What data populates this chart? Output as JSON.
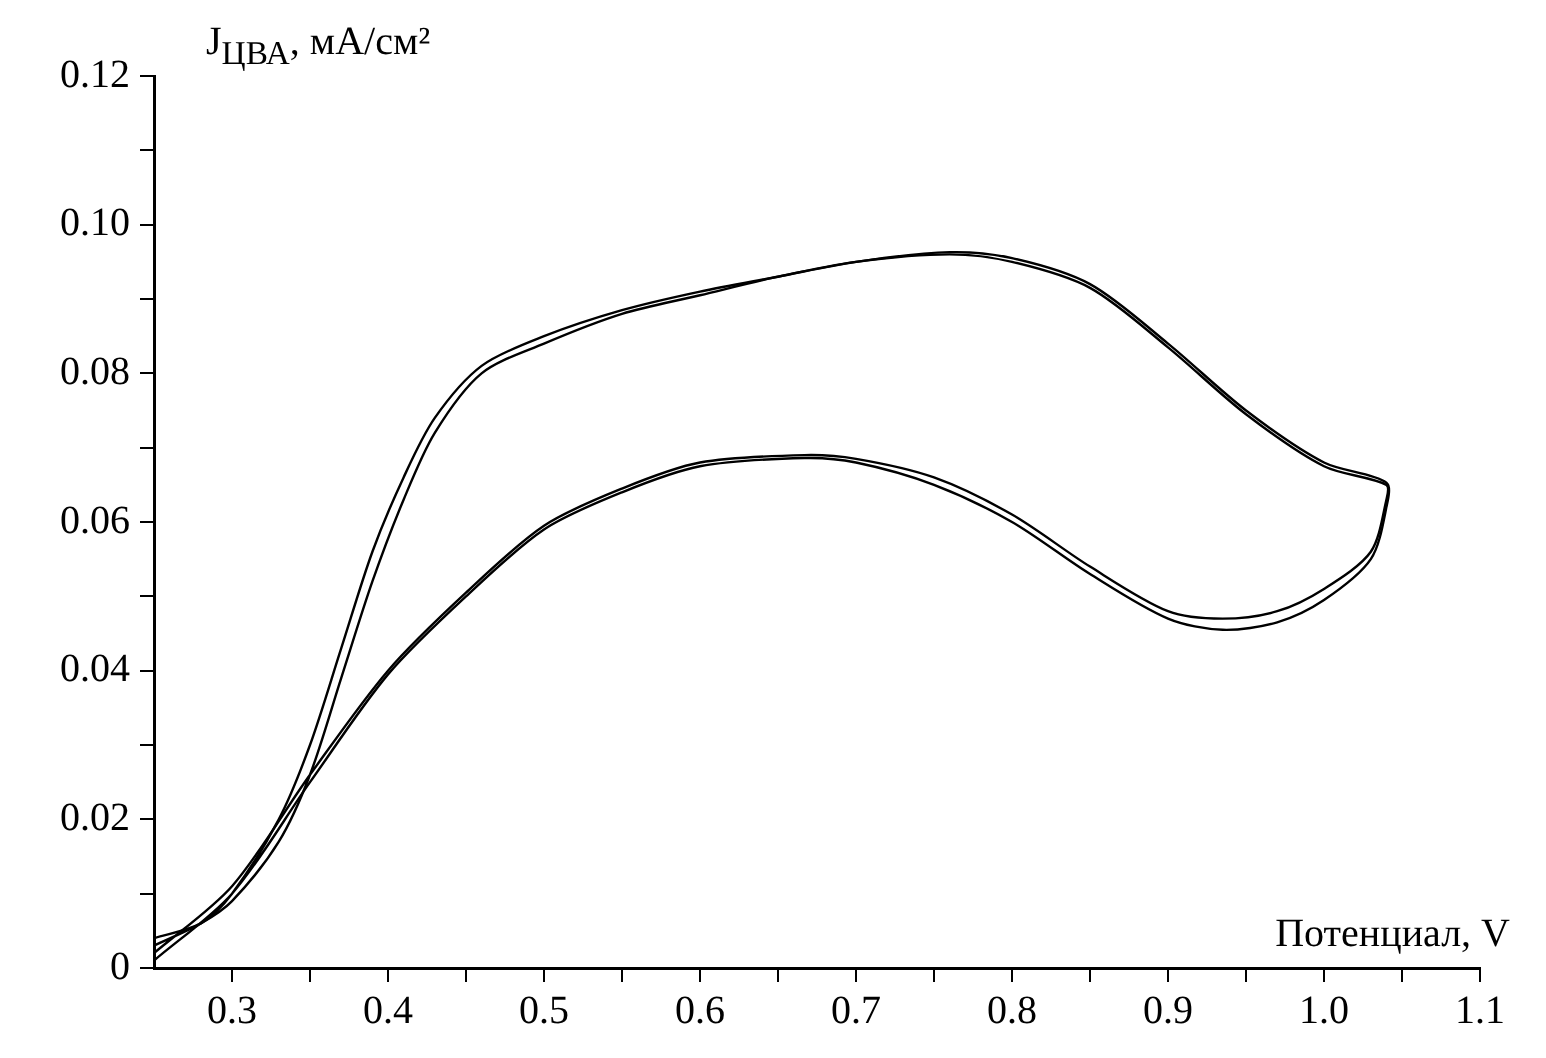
{
  "chart_data": {
    "type": "line",
    "ylabel": "J$_{ЦВА}$, мА/см²",
    "xlabel": "Потенциал, V",
    "xlim": [
      0.25,
      1.1
    ],
    "xticks": [
      0.3,
      {
        "value": 0.35,
        "label": null
      },
      0.4,
      {
        "value": 0.45,
        "label": null
      },
      0.5,
      {
        "value": 0.55,
        "label": null
      },
      0.6,
      {
        "value": 0.65,
        "label": null
      },
      0.7,
      {
        "value": 0.75,
        "label": null
      },
      0.8,
      {
        "value": 0.85,
        "label": null
      },
      0.9,
      {
        "value": 0.95,
        "label": null
      },
      {
        "value": 1.0,
        "label": "1.0"
      },
      {
        "value": 1.05,
        "label": null
      },
      1.1
    ],
    "ylim": [
      0,
      0.12
    ],
    "yticks": [
      0,
      {
        "value": 0.01,
        "label": null
      },
      0.02,
      {
        "value": 0.03,
        "label": null
      },
      0.04,
      {
        "value": 0.05,
        "label": null
      },
      0.06,
      {
        "value": 0.07,
        "label": null
      },
      0.08,
      {
        "value": 0.09,
        "label": null
      },
      {
        "value": 0.1,
        "label": "0.10"
      },
      {
        "value": 0.11,
        "label": null
      },
      0.12
    ],
    "grid": false,
    "legend": false,
    "marker": "none",
    "line_style": "solid",
    "series": [
      {
        "color": "#000000",
        "x": [
          0.25,
          0.28,
          0.3,
          0.33,
          0.35,
          0.37,
          0.39,
          0.41,
          0.43,
          0.46,
          0.5,
          0.55,
          0.6,
          0.65,
          0.7,
          0.76,
          0.8,
          0.85,
          0.9,
          0.95,
          1.0,
          1.04,
          1.04,
          1.03,
          1.0,
          0.97,
          0.935,
          0.9,
          0.85,
          0.8,
          0.75,
          0.7,
          0.667,
          0.6,
          0.55,
          0.5,
          0.45,
          0.4,
          0.35,
          0.3,
          0.25
        ],
        "values": [
          0.004,
          0.006,
          0.01,
          0.02,
          0.03,
          0.043,
          0.056,
          0.066,
          0.074,
          0.081,
          0.085,
          0.0885,
          0.091,
          0.093,
          0.095,
          0.0963,
          0.0955,
          0.092,
          0.084,
          0.075,
          0.068,
          0.0653,
          0.062,
          0.055,
          0.0495,
          0.0465,
          0.0455,
          0.047,
          0.053,
          0.06,
          0.065,
          0.068,
          0.0686,
          0.0675,
          0.064,
          0.059,
          0.05,
          0.0395,
          0.025,
          0.01,
          0.001
        ]
      },
      {
        "color": "#000000",
        "x": [
          0.25,
          0.28,
          0.3,
          0.33,
          0.35,
          0.37,
          0.39,
          0.41,
          0.43,
          0.46,
          0.5,
          0.55,
          0.6,
          0.65,
          0.7,
          0.76,
          0.8,
          0.85,
          0.9,
          0.95,
          1.0,
          1.04,
          1.04,
          1.03,
          1.0,
          0.97,
          0.935,
          0.9,
          0.85,
          0.8,
          0.75,
          0.7,
          0.667,
          0.6,
          0.55,
          0.5,
          0.45,
          0.4,
          0.35,
          0.3,
          0.25
        ],
        "values": [
          0.003,
          0.006,
          0.009,
          0.017,
          0.026,
          0.039,
          0.052,
          0.063,
          0.072,
          0.08,
          0.084,
          0.088,
          0.0905,
          0.093,
          0.095,
          0.096,
          0.095,
          0.0915,
          0.0835,
          0.0745,
          0.0675,
          0.065,
          0.063,
          0.056,
          0.051,
          0.048,
          0.047,
          0.048,
          0.054,
          0.061,
          0.066,
          0.0685,
          0.069,
          0.068,
          0.0645,
          0.0595,
          0.0505,
          0.04,
          0.026,
          0.011,
          0.002
        ]
      }
    ]
  }
}
